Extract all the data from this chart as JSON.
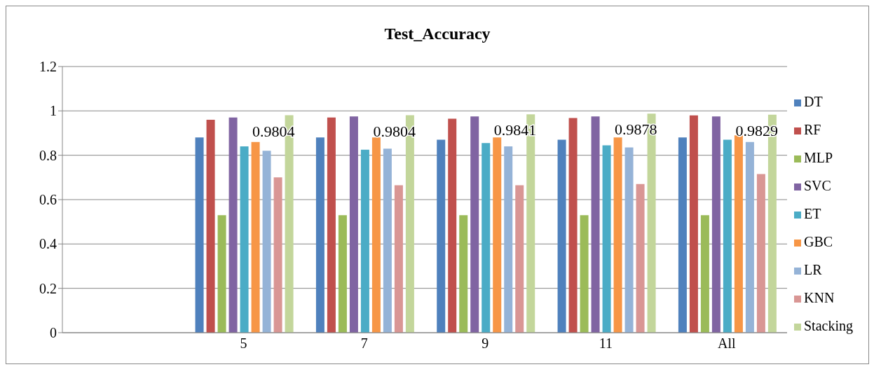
{
  "chart_data": {
    "type": "bar",
    "title": "Test_Accuracy",
    "categories": [
      null,
      "5",
      "7",
      "9",
      "11",
      "All"
    ],
    "ylim": [
      0,
      1.2
    ],
    "yticks": [
      0,
      0.2,
      0.4,
      0.6,
      0.8,
      1,
      1.2
    ],
    "grid": "y",
    "legend": "right",
    "series": [
      {
        "name": "DT",
        "color": "#4f81bd",
        "values": [
          null,
          0.88,
          0.88,
          0.87,
          0.87,
          0.88
        ]
      },
      {
        "name": "RF",
        "color": "#c0504d",
        "values": [
          null,
          0.96,
          0.97,
          0.965,
          0.968,
          0.98
        ]
      },
      {
        "name": "MLP",
        "color": "#9bbb59",
        "values": [
          null,
          0.53,
          0.53,
          0.53,
          0.53,
          0.53
        ]
      },
      {
        "name": "SVC",
        "color": "#8064a2",
        "values": [
          null,
          0.97,
          0.975,
          0.975,
          0.975,
          0.975
        ]
      },
      {
        "name": "ET",
        "color": "#4bacc6",
        "values": [
          null,
          0.84,
          0.825,
          0.855,
          0.845,
          0.87
        ]
      },
      {
        "name": "GBC",
        "color": "#f79646",
        "values": [
          null,
          0.86,
          0.88,
          0.88,
          0.88,
          0.89
        ]
      },
      {
        "name": "LR",
        "color": "#95b3d7",
        "values": [
          null,
          0.82,
          0.83,
          0.84,
          0.835,
          0.86
        ]
      },
      {
        "name": "KNN",
        "color": "#d99694",
        "values": [
          null,
          0.7,
          0.665,
          0.665,
          0.67,
          0.715
        ]
      },
      {
        "name": "Stacking",
        "color": "#c3d69b",
        "values": [
          null,
          0.9804,
          0.9804,
          0.9841,
          0.9878,
          0.9829
        ],
        "value_labels": [
          null,
          "0.9804",
          "0.9804",
          "0.9841",
          "0.9878",
          "0.9829"
        ]
      }
    ]
  }
}
